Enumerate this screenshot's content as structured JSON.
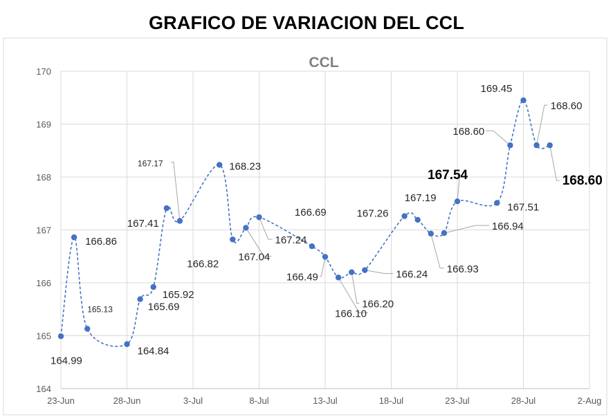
{
  "page": {
    "title": "GRAFICO DE VARIACION DEL CCL"
  },
  "colors": {
    "series": "#4472C4",
    "grid": "#d9d9d9",
    "axis_text": "#595959",
    "chart_title": "#7f7f7f",
    "leader": "#a6a6a6"
  },
  "chart_data": {
    "type": "line",
    "title": "CCL",
    "xlabel": "",
    "ylabel": "",
    "ylim": [
      164,
      170
    ],
    "yticks": [
      164,
      165,
      166,
      167,
      168,
      169,
      170
    ],
    "xlim": [
      "2021-06-23",
      "2021-08-02"
    ],
    "xticks": [
      {
        "date": "2021-06-23",
        "label": "23-Jun"
      },
      {
        "date": "2021-06-28",
        "label": "28-Jun"
      },
      {
        "date": "2021-07-03",
        "label": "3-Jul"
      },
      {
        "date": "2021-07-08",
        "label": "8-Jul"
      },
      {
        "date": "2021-07-13",
        "label": "13-Jul"
      },
      {
        "date": "2021-07-18",
        "label": "18-Jul"
      },
      {
        "date": "2021-07-23",
        "label": "23-Jul"
      },
      {
        "date": "2021-07-28",
        "label": "28-Jul"
      },
      {
        "date": "2021-08-02",
        "label": "2-Aug"
      }
    ],
    "grid": true,
    "line_style": "dashed-smooth",
    "series": [
      {
        "points": [
          {
            "x": "2021-06-23",
            "y": 164.99,
            "label": "164.99"
          },
          {
            "x": "2021-06-24",
            "y": 166.86,
            "label": "166.86"
          },
          {
            "x": "2021-06-25",
            "y": 165.13,
            "label": "165.13"
          },
          {
            "x": "2021-06-28",
            "y": 164.84,
            "label": "164.84"
          },
          {
            "x": "2021-06-29",
            "y": 165.69,
            "label": "165.69"
          },
          {
            "x": "2021-06-30",
            "y": 165.92,
            "label": "165.92"
          },
          {
            "x": "2021-07-01",
            "y": 167.41,
            "label": "167.41"
          },
          {
            "x": "2021-07-02",
            "y": 167.17,
            "label": "167.17"
          },
          {
            "x": "2021-07-05",
            "y": 168.23,
            "label": "168.23"
          },
          {
            "x": "2021-07-06",
            "y": 166.82,
            "label": "166.82"
          },
          {
            "x": "2021-07-07",
            "y": 167.04,
            "label": "167.04"
          },
          {
            "x": "2021-07-08",
            "y": 167.24,
            "label": "167.24"
          },
          {
            "x": "2021-07-12",
            "y": 166.69,
            "label": "166.69"
          },
          {
            "x": "2021-07-13",
            "y": 166.49,
            "label": "166.49"
          },
          {
            "x": "2021-07-14",
            "y": 166.1,
            "label": "166.10"
          },
          {
            "x": "2021-07-15",
            "y": 166.2,
            "label": "166.20"
          },
          {
            "x": "2021-07-16",
            "y": 166.24,
            "label": "166.24"
          },
          {
            "x": "2021-07-19",
            "y": 167.26,
            "label": "167.26"
          },
          {
            "x": "2021-07-20",
            "y": 167.19,
            "label": "167.19"
          },
          {
            "x": "2021-07-21",
            "y": 166.93,
            "label": "166.93"
          },
          {
            "x": "2021-07-22",
            "y": 166.94,
            "label": "166.94"
          },
          {
            "x": "2021-07-23",
            "y": 167.54,
            "label": "167.54"
          },
          {
            "x": "2021-07-26",
            "y": 167.51,
            "label": "167.51"
          },
          {
            "x": "2021-07-27",
            "y": 168.6,
            "label": "168.60"
          },
          {
            "x": "2021-07-28",
            "y": 169.45,
            "label": "169.45"
          },
          {
            "x": "2021-07-29",
            "y": 168.6,
            "label": "168.60"
          },
          {
            "x": "2021-07-30",
            "y": 168.6,
            "label": "168.60"
          }
        ]
      }
    ]
  }
}
